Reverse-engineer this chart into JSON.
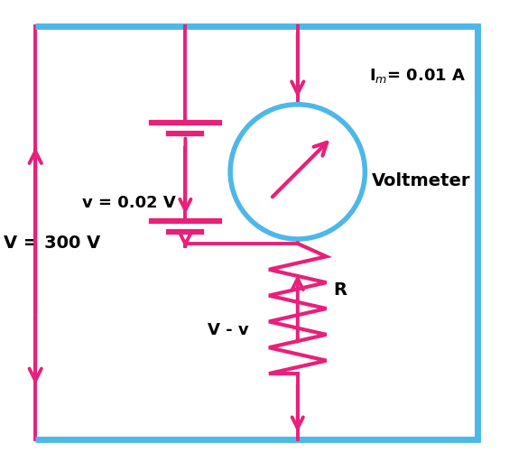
{
  "bg_color": "#ffffff",
  "rail_color": "#4db8e8",
  "arrow_color": "#e8207a",
  "text_color": "#1a1a1a",
  "fig_w": 5.64,
  "fig_h": 5.11,
  "dpi": 100,
  "label_Im": "I$_m$= 0.01 A",
  "label_v": "v = 0.02 V",
  "label_V": "V = 300 V",
  "label_Vv": "V - v",
  "label_R": "R",
  "label_voltmeter": "Voltmeter"
}
